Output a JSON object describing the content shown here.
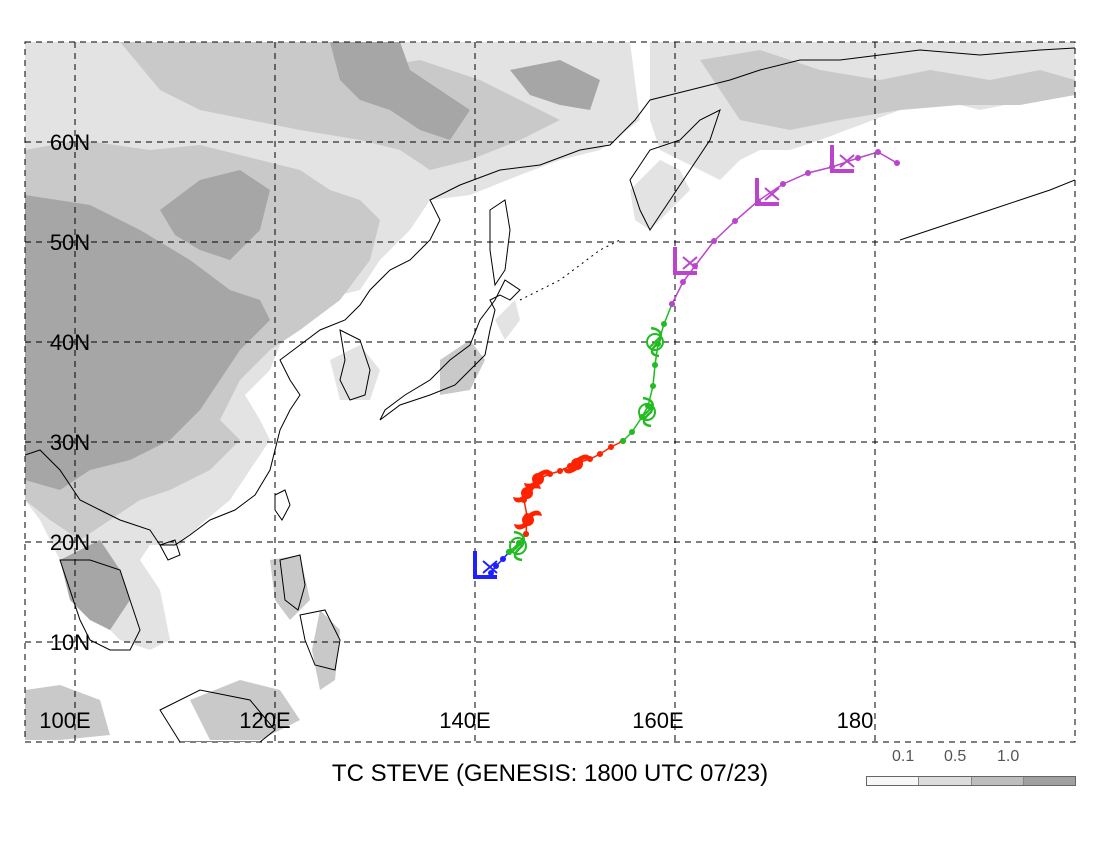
{
  "title": "TC STEVE (GENESIS: 1800 UTC 07/23)",
  "lon_labels": [
    "100E",
    "120E",
    "140E",
    "160E",
    "180"
  ],
  "lat_labels": [
    "10N",
    "20N",
    "30N",
    "40N",
    "50N",
    "60N"
  ],
  "legend": {
    "values": [
      "0.1",
      "0.5",
      "1.0"
    ],
    "colors": [
      "#f7f7f7",
      "#dcdcdc",
      "#bdbdbd",
      "#a0a0a0"
    ]
  },
  "colors": {
    "terrain_light": "#e3e3e3",
    "terrain_mid": "#c9c9c9",
    "terrain_dark": "#a6a6a6",
    "stage_disturbance": "#2020ff",
    "stage_storm": "#22bb22",
    "stage_typhoon": "#ff2200",
    "stage_extratropical": "#bb44cc"
  },
  "track_stages": [
    {
      "stage": "disturbance",
      "color": "#2020ff",
      "points": [
        [
          141.6,
          16.9
        ],
        [
          142.1,
          17.6
        ],
        [
          142.8,
          18.3
        ],
        [
          143.4,
          19.0
        ]
      ]
    },
    {
      "stage": "storm",
      "color": "#22bb22",
      "points": [
        [
          143.4,
          19.0
        ],
        [
          144.4,
          19.9
        ],
        [
          145.1,
          20.8
        ]
      ]
    },
    {
      "stage": "typhoon",
      "color": "#ff2200",
      "points": [
        [
          145.1,
          20.8
        ],
        [
          145.2,
          22.6
        ],
        [
          144.9,
          24.2
        ],
        [
          145.6,
          25.4
        ],
        [
          146.5,
          26.4
        ],
        [
          147.5,
          26.8
        ],
        [
          148.5,
          27.1
        ],
        [
          149.5,
          27.6
        ],
        [
          150.5,
          28.0
        ],
        [
          151.5,
          28.3
        ],
        [
          152.5,
          28.8
        ],
        [
          153.6,
          29.5
        ],
        [
          154.8,
          30.1
        ]
      ]
    },
    {
      "stage": "storm",
      "color": "#22bb22",
      "points": [
        [
          154.8,
          30.1
        ],
        [
          155.7,
          31.0
        ],
        [
          156.7,
          32.5
        ],
        [
          157.3,
          33.6
        ],
        [
          157.8,
          35.6
        ],
        [
          158.0,
          37.7
        ],
        [
          158.3,
          39.8
        ],
        [
          158.9,
          41.8
        ],
        [
          159.7,
          43.8
        ]
      ]
    },
    {
      "stage": "extratropical",
      "color": "#bb44cc",
      "points": [
        [
          159.7,
          43.8
        ],
        [
          160.8,
          46.0
        ],
        [
          162.0,
          47.6
        ],
        [
          163.9,
          50.1
        ],
        [
          166.0,
          52.1
        ],
        [
          168.3,
          54.1
        ],
        [
          170.8,
          55.8
        ],
        [
          173.3,
          56.9
        ],
        [
          175.7,
          57.5
        ],
        [
          178.3,
          58.4
        ],
        [
          180.3,
          59.0
        ],
        [
          182.2,
          57.9
        ]
      ]
    }
  ],
  "symbols": [
    {
      "type": "tropical_storm",
      "color": "#22bb22",
      "lon": 144.3,
      "lat": 19.6
    },
    {
      "type": "typhoon",
      "color": "#ff2200",
      "lon": 145.3,
      "lat": 22.2
    },
    {
      "type": "typhoon",
      "color": "#ff2200",
      "lon": 145.2,
      "lat": 24.9
    },
    {
      "type": "typhoon",
      "color": "#ff2200",
      "lon": 146.3,
      "lat": 26.3
    },
    {
      "type": "typhoon",
      "color": "#ff2200",
      "lon": 150.2,
      "lat": 27.8
    },
    {
      "type": "tropical_storm",
      "color": "#22bb22",
      "lon": 157.2,
      "lat": 33.0
    },
    {
      "type": "tropical_storm",
      "color": "#22bb22",
      "lon": 158.0,
      "lat": 40.0
    },
    {
      "type": "low",
      "color": "#bb44cc",
      "lon": 161.0,
      "lat": 47.7
    },
    {
      "type": "low",
      "color": "#bb44cc",
      "lon": 169.2,
      "lat": 54.6
    },
    {
      "type": "low",
      "color": "#bb44cc",
      "lon": 176.7,
      "lat": 57.9
    },
    {
      "type": "low",
      "color": "#2020ff",
      "lon": 141.0,
      "lat": 17.3
    }
  ]
}
